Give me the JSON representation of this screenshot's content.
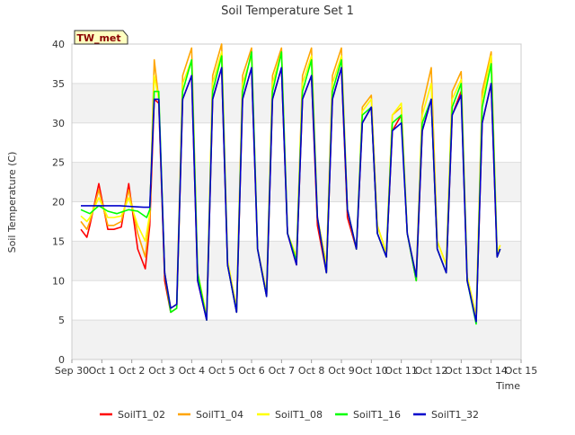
{
  "chart_data": {
    "type": "line",
    "title": "Soil Temperature Set 1",
    "xlabel": "Time",
    "ylabel": "Soil Temperature (C)",
    "station_badge": "TW_met",
    "xlim": [
      0,
      15
    ],
    "ylim": [
      0,
      40
    ],
    "x_ticks": [
      {
        "value": 0,
        "label": "Sep 30"
      },
      {
        "value": 1,
        "label": "Oct 1"
      },
      {
        "value": 2,
        "label": "Oct 2"
      },
      {
        "value": 3,
        "label": "Oct 3"
      },
      {
        "value": 4,
        "label": "Oct 4"
      },
      {
        "value": 5,
        "label": "Oct 5"
      },
      {
        "value": 6,
        "label": "Oct 6"
      },
      {
        "value": 7,
        "label": "Oct 7"
      },
      {
        "value": 8,
        "label": "Oct 8"
      },
      {
        "value": 9,
        "label": "Oct 9"
      },
      {
        "value": 10,
        "label": "Oct 10"
      },
      {
        "value": 11,
        "label": "Oct 11"
      },
      {
        "value": 12,
        "label": "Oct 12"
      },
      {
        "value": 13,
        "label": "Oct 13"
      },
      {
        "value": 14,
        "label": "Oct 14"
      },
      {
        "value": 15,
        "label": "Oct 15"
      }
    ],
    "y_ticks": [
      0,
      5,
      10,
      15,
      20,
      25,
      30,
      35,
      40
    ],
    "grid": true,
    "legend_position": "bottom",
    "series": [
      {
        "name": "SoilT1_02",
        "color": "#ff0000",
        "x": [
          0.3,
          0.5,
          0.6,
          0.9,
          1.2,
          1.4,
          1.65,
          1.9,
          2.2,
          2.45,
          2.6,
          2.75,
          2.9,
          3.1,
          3.3,
          3.5,
          3.7,
          4.0,
          4.2,
          4.5,
          4.7,
          5.0,
          5.2,
          5.5,
          5.7,
          6.0,
          6.2,
          6.5,
          6.7,
          7.0,
          7.2,
          7.5,
          7.7,
          8.0,
          8.2,
          8.5,
          8.7,
          9.0,
          9.2,
          9.5,
          9.7,
          10.0,
          10.2,
          10.5,
          10.7,
          11.0,
          11.2,
          11.5,
          11.7,
          12.0,
          12.2,
          12.5,
          12.7,
          13.0,
          13.2,
          13.5,
          13.7,
          14.0,
          14.2,
          14.3
        ],
        "y": [
          16.5,
          15.5,
          17,
          22.3,
          16.5,
          16.5,
          16.8,
          22.3,
          14,
          11.5,
          17,
          33,
          32.5,
          10,
          6,
          6.5,
          33,
          36,
          10,
          5,
          33,
          37,
          12,
          6,
          33,
          37,
          14,
          8,
          33,
          37,
          16,
          12,
          33,
          36,
          17,
          11,
          33,
          37,
          18,
          14,
          30,
          32,
          16,
          13,
          29,
          31,
          16,
          10,
          29,
          33,
          14,
          11,
          31,
          34,
          10,
          5,
          30,
          35,
          13,
          14
        ]
      },
      {
        "name": "SoilT1_04",
        "color": "#ffa500",
        "x": [
          0.3,
          0.5,
          0.6,
          0.9,
          1.2,
          1.4,
          1.65,
          1.9,
          2.2,
          2.45,
          2.6,
          2.75,
          2.9,
          3.1,
          3.3,
          3.5,
          3.7,
          4.0,
          4.2,
          4.5,
          4.7,
          5.0,
          5.2,
          5.5,
          5.7,
          6.0,
          6.2,
          6.5,
          6.7,
          7.0,
          7.2,
          7.5,
          7.7,
          8.0,
          8.2,
          8.5,
          8.7,
          9.0,
          9.2,
          9.5,
          9.7,
          10.0,
          10.2,
          10.5,
          10.7,
          11.0,
          11.2,
          11.5,
          11.7,
          12.0,
          12.2,
          12.5,
          12.7,
          13.0,
          13.2,
          13.5,
          13.7,
          14.0,
          14.2,
          14.3
        ],
        "y": [
          17.5,
          16.5,
          17.5,
          21.5,
          17,
          17,
          17.5,
          21.5,
          16,
          13,
          18,
          38,
          33,
          11,
          6.5,
          7,
          36,
          39.5,
          11,
          5.5,
          36,
          40,
          12.5,
          6.5,
          36,
          39.5,
          14,
          8.5,
          36,
          39.5,
          16,
          13,
          36,
          39.5,
          18,
          12,
          36,
          39.5,
          19,
          14,
          32,
          33.5,
          17,
          13.5,
          31,
          32,
          16,
          10.5,
          32,
          37,
          15,
          12,
          34,
          36.5,
          10.5,
          5.5,
          34,
          39,
          13.5,
          14.5
        ]
      },
      {
        "name": "SoilT1_08",
        "color": "#ffff00",
        "x": [
          0.3,
          0.5,
          0.6,
          0.9,
          1.2,
          1.4,
          1.65,
          1.9,
          2.2,
          2.45,
          2.6,
          2.75,
          2.9,
          3.1,
          3.3,
          3.5,
          3.7,
          4.0,
          4.2,
          4.5,
          4.7,
          5.0,
          5.2,
          5.5,
          5.7,
          6.0,
          6.2,
          6.5,
          6.7,
          7.0,
          7.2,
          7.5,
          7.7,
          8.0,
          8.2,
          8.5,
          8.7,
          9.0,
          9.2,
          9.5,
          9.7,
          10.0,
          10.2,
          10.5,
          10.7,
          11.0,
          11.2,
          11.5,
          11.7,
          12.0,
          12.2,
          12.5,
          12.7,
          13.0,
          13.2,
          13.5,
          13.7,
          14.0,
          14.2,
          14.3
        ],
        "y": [
          18.2,
          17.5,
          18,
          20.5,
          18,
          18,
          18.2,
          20.5,
          17,
          15,
          18.5,
          36,
          33,
          11,
          6.5,
          7,
          35,
          38,
          11,
          5.5,
          35,
          39,
          12.5,
          6.5,
          35,
          38.5,
          14,
          8.5,
          35,
          39,
          16,
          13,
          35,
          38.5,
          18,
          12,
          35,
          38.5,
          19,
          14,
          31.5,
          33,
          17,
          13.5,
          31,
          32.5,
          16,
          10.5,
          31,
          35,
          15,
          12,
          33,
          35.5,
          10.5,
          5.5,
          33,
          38.5,
          13.5,
          14.5
        ]
      },
      {
        "name": "SoilT1_16",
        "color": "#00ff00",
        "x": [
          0.3,
          0.6,
          0.9,
          1.2,
          1.5,
          1.9,
          2.2,
          2.5,
          2.6,
          2.75,
          2.9,
          3.1,
          3.3,
          3.5,
          3.7,
          4.0,
          4.2,
          4.5,
          4.7,
          5.0,
          5.2,
          5.5,
          5.7,
          6.0,
          6.2,
          6.5,
          6.7,
          7.0,
          7.2,
          7.5,
          7.7,
          8.0,
          8.2,
          8.5,
          8.7,
          9.0,
          9.2,
          9.5,
          9.7,
          10.0,
          10.2,
          10.5,
          10.7,
          11.0,
          11.2,
          11.5,
          11.7,
          12.0,
          12.2,
          12.5,
          12.7,
          13.0,
          13.2,
          13.5,
          13.7,
          14.0,
          14.2,
          14.3
        ],
        "y": [
          19,
          18.5,
          19.5,
          18.8,
          18.5,
          19,
          18.8,
          18,
          19,
          34,
          34,
          11,
          6,
          6.5,
          34,
          38,
          11,
          5,
          34,
          38.5,
          12,
          6,
          34,
          39,
          14,
          8,
          34,
          39,
          16,
          12.5,
          34,
          38,
          18,
          11,
          34,
          38,
          19,
          14,
          31,
          32,
          16,
          13,
          30,
          31,
          16,
          10,
          30,
          33,
          14,
          11,
          32,
          35,
          10,
          4.5,
          32,
          37.5,
          13,
          14
        ]
      },
      {
        "name": "SoilT1_32",
        "color": "#0000cc",
        "x": [
          0.3,
          0.8,
          1.2,
          1.6,
          2.0,
          2.4,
          2.6,
          2.75,
          2.9,
          3.1,
          3.3,
          3.5,
          3.7,
          4.0,
          4.2,
          4.5,
          4.7,
          5.0,
          5.2,
          5.5,
          5.7,
          6.0,
          6.2,
          6.5,
          6.7,
          7.0,
          7.2,
          7.5,
          7.7,
          8.0,
          8.2,
          8.5,
          8.7,
          9.0,
          9.2,
          9.5,
          9.7,
          10.0,
          10.2,
          10.5,
          10.7,
          11.0,
          11.2,
          11.5,
          11.7,
          12.0,
          12.2,
          12.5,
          12.7,
          13.0,
          13.2,
          13.5,
          13.7,
          14.0,
          14.2,
          14.3
        ],
        "y": [
          19.5,
          19.5,
          19.5,
          19.5,
          19.4,
          19.3,
          19.3,
          33,
          33,
          11,
          6.5,
          7,
          33,
          36,
          10,
          5,
          33,
          37,
          12,
          6,
          33,
          37,
          14,
          8,
          33,
          37,
          16,
          12,
          33,
          36,
          18,
          11,
          33,
          37,
          19,
          14,
          30,
          32,
          16,
          13,
          29,
          30,
          16,
          10.5,
          29,
          33,
          14,
          11,
          31,
          33.5,
          10,
          4.8,
          30,
          35,
          13,
          14
        ]
      }
    ]
  }
}
